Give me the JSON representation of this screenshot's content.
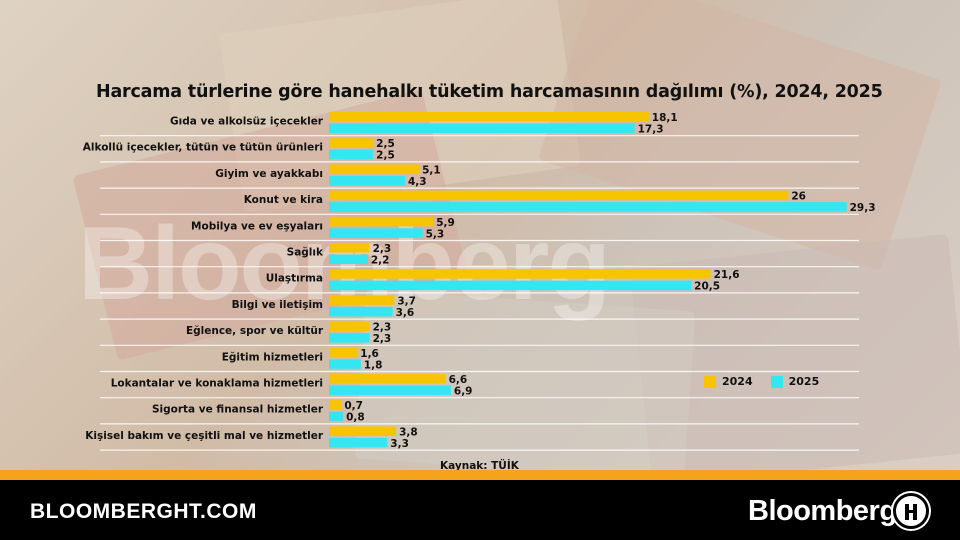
{
  "chart_data": {
    "type": "bar",
    "orientation": "horizontal",
    "title": "Harcama türlerine göre hanehalkı tüketim harcamasının dağılımı (%), 2024, 2025",
    "categories": [
      "Gıda ve alkolsüz içecekler",
      "Alkollü içecekler, tütün ve tütün ürünleri",
      "Giyim ve ayakkabı",
      "Konut ve kira",
      "Mobilya ve ev eşyaları",
      "Sağlık",
      "Ulaştırma",
      "Bilgi ve iletişim",
      "Eğlence, spor ve kültür",
      "Eğitim hizmetleri",
      "Lokantalar ve konaklama hizmetleri",
      "Sigorta ve finansal hizmetler",
      "Kişisel bakım ve çeşitli mal ve hizmetler"
    ],
    "series": [
      {
        "name": "2024",
        "color": "#f7c500",
        "values": [
          18.1,
          2.5,
          5.1,
          26,
          5.9,
          2.3,
          21.6,
          3.7,
          2.3,
          1.6,
          6.6,
          0.7,
          3.8
        ],
        "labels": [
          "18,1",
          "2,5",
          "5,1",
          "26",
          "5,9",
          "2,3",
          "21,6",
          "3,7",
          "2,3",
          "1,6",
          "6,6",
          "0,7",
          "3,8"
        ]
      },
      {
        "name": "2025",
        "color": "#33e6f2",
        "values": [
          17.3,
          2.5,
          4.3,
          29.3,
          5.3,
          2.2,
          20.5,
          3.6,
          2.3,
          1.8,
          6.9,
          0.8,
          3.3
        ],
        "labels": [
          "17,3",
          "2,5",
          "4,3",
          "29,3",
          "5,3",
          "2,2",
          "20,5",
          "3,6",
          "2,3",
          "1,8",
          "6,9",
          "0,8",
          "3,3"
        ]
      }
    ],
    "xlim": [
      0,
      30
    ],
    "legend_position": "bottom-right",
    "source": "Kaynak: TÜİK"
  },
  "watermark": "Bloomberg",
  "footer": {
    "site": "BLOOMBERGHT.COM",
    "brand": "Bloomberg"
  }
}
